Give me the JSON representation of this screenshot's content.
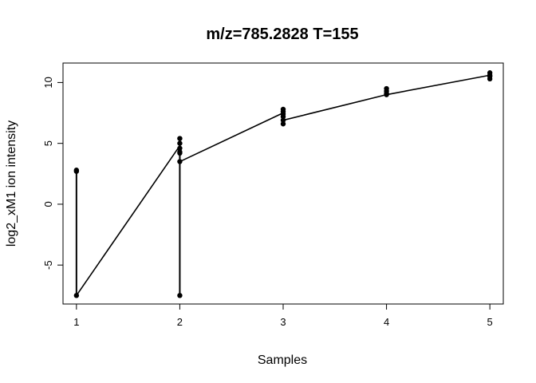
{
  "chart_data": {
    "type": "line",
    "title": "m/z=785.2828 T=155",
    "xlabel": "Samples",
    "ylabel": "log2_xM1 ion intensity",
    "xlim": [
      0.87,
      5.13
    ],
    "ylim": [
      -8.2,
      11.6
    ],
    "x_ticks": [
      "1",
      "2",
      "3",
      "4",
      "5"
    ],
    "y_ticks": [
      "-5",
      "0",
      "5",
      "10"
    ],
    "grid": false,
    "series": [
      {
        "x": 1,
        "values": [
          2.8,
          2.7,
          -7.5
        ]
      },
      {
        "x": 2,
        "values": [
          5.4,
          5.0,
          4.6,
          4.3,
          4.2,
          3.5,
          -7.5
        ]
      },
      {
        "x": 3,
        "values": [
          7.8,
          7.6,
          7.4,
          7.2,
          6.9,
          6.6
        ]
      },
      {
        "x": 4,
        "values": [
          9.5,
          9.3,
          9.1,
          9.0
        ]
      },
      {
        "x": 5,
        "values": [
          10.8,
          10.6,
          10.5,
          10.3
        ]
      }
    ],
    "trend": [
      {
        "x": 1,
        "y": -7.5
      },
      {
        "x": 2,
        "y": 4.8
      },
      {
        "x": 2,
        "y": 3.5
      },
      {
        "x": 3,
        "y": 7.5
      },
      {
        "x": 3,
        "y": 6.9
      },
      {
        "x": 4,
        "y": 9.0
      },
      {
        "x": 5,
        "y": 10.6
      }
    ]
  }
}
